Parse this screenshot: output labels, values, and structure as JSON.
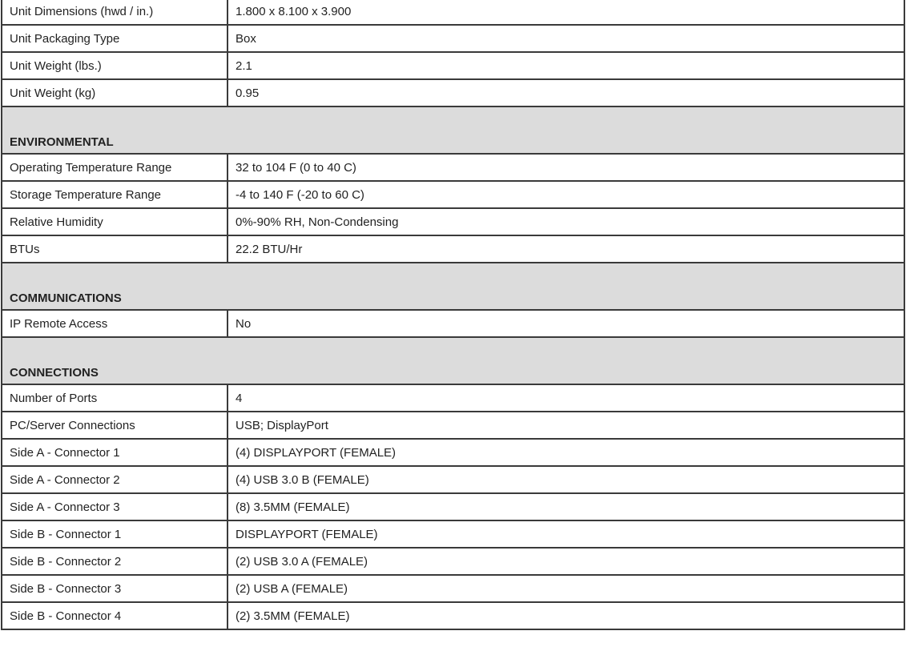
{
  "rows": [
    {
      "type": "row",
      "label": "Unit Dimensions (hwd / in.)",
      "value": "1.800 x 8.100 x 3.900"
    },
    {
      "type": "row",
      "label": "Unit Packaging Type",
      "value": "Box"
    },
    {
      "type": "row",
      "label": "Unit Weight (lbs.)",
      "value": "2.1"
    },
    {
      "type": "row",
      "label": "Unit Weight (kg)",
      "value": "0.95"
    },
    {
      "type": "section",
      "label": "ENVIRONMENTAL"
    },
    {
      "type": "row",
      "label": "Operating Temperature Range",
      "value": "32 to 104 F (0 to 40 C)"
    },
    {
      "type": "row",
      "label": "Storage Temperature Range",
      "value": "-4 to 140 F (-20 to 60 C)"
    },
    {
      "type": "row",
      "label": "Relative Humidity",
      "value": "0%-90% RH, Non-Condensing"
    },
    {
      "type": "row",
      "label": "BTUs",
      "value": "22.2 BTU/Hr"
    },
    {
      "type": "section",
      "label": "COMMUNICATIONS"
    },
    {
      "type": "row",
      "label": "IP Remote Access",
      "value": "No"
    },
    {
      "type": "section",
      "label": "CONNECTIONS"
    },
    {
      "type": "row",
      "label": "Number of Ports",
      "value": "4"
    },
    {
      "type": "row",
      "label": "PC/Server Connections",
      "value": "USB; DisplayPort"
    },
    {
      "type": "row",
      "label": "Side A - Connector 1",
      "value": "(4) DISPLAYPORT (FEMALE)"
    },
    {
      "type": "row",
      "label": "Side A - Connector 2",
      "value": "(4) USB 3.0 B (FEMALE)"
    },
    {
      "type": "row",
      "label": "Side A - Connector 3",
      "value": "(8) 3.5MM (FEMALE)"
    },
    {
      "type": "row",
      "label": "Side B - Connector 1",
      "value": "DISPLAYPORT (FEMALE)"
    },
    {
      "type": "row",
      "label": "Side B - Connector 2",
      "value": "(2) USB 3.0 A (FEMALE)"
    },
    {
      "type": "row",
      "label": "Side B - Connector 3",
      "value": "(2) USB A (FEMALE)"
    },
    {
      "type": "row",
      "label": "Side B - Connector 4",
      "value": "(2) 3.5MM (FEMALE)"
    }
  ]
}
